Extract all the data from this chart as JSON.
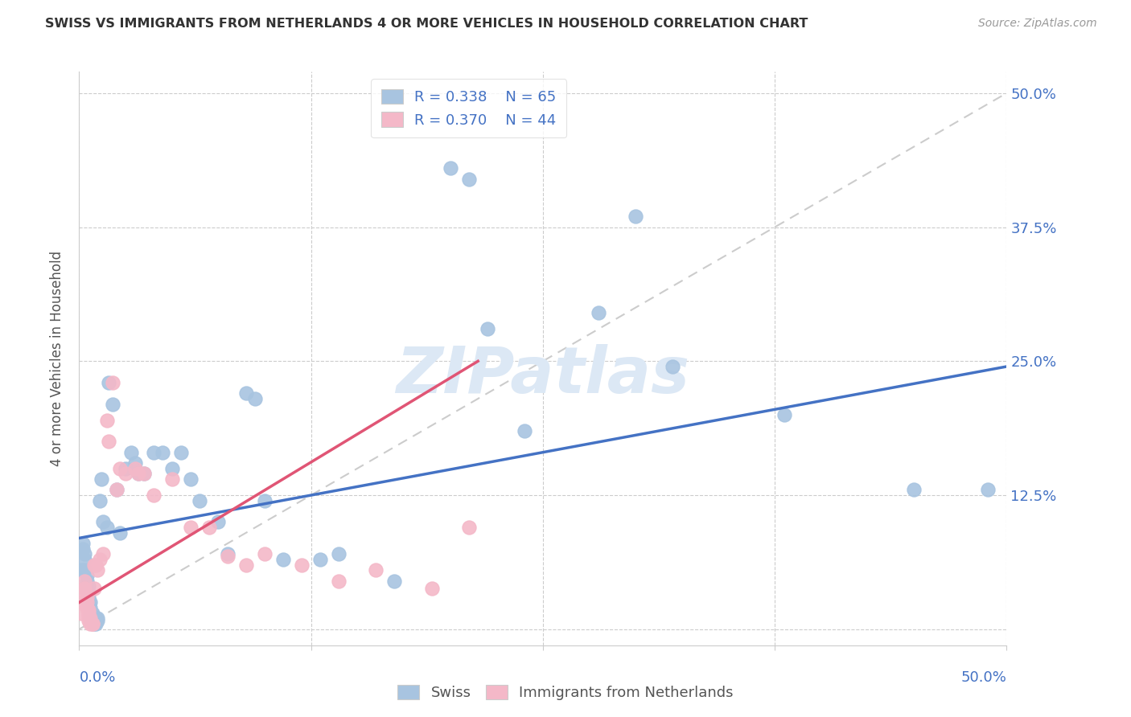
{
  "title": "SWISS VS IMMIGRANTS FROM NETHERLANDS 4 OR MORE VEHICLES IN HOUSEHOLD CORRELATION CHART",
  "source": "Source: ZipAtlas.com",
  "ylabel": "4 or more Vehicles in Household",
  "xlim": [
    0.0,
    0.5
  ],
  "ylim": [
    -0.015,
    0.52
  ],
  "yticks": [
    0.0,
    0.125,
    0.25,
    0.375,
    0.5
  ],
  "ytick_labels": [
    "",
    "12.5%",
    "25.0%",
    "37.5%",
    "50.0%"
  ],
  "xticks": [
    0.0,
    0.125,
    0.25,
    0.375,
    0.5
  ],
  "swiss_R": 0.338,
  "swiss_N": 65,
  "netherlands_R": 0.37,
  "netherlands_N": 44,
  "swiss_color": "#a8c4e0",
  "netherlands_color": "#f4b8c8",
  "swiss_line_color": "#4472c4",
  "netherlands_line_color": "#e05575",
  "tick_label_color": "#4472c4",
  "watermark_color": "#dce8f5",
  "swiss_x": [
    0.001,
    0.002,
    0.002,
    0.003,
    0.003,
    0.003,
    0.004,
    0.004,
    0.004,
    0.005,
    0.005,
    0.005,
    0.005,
    0.006,
    0.006,
    0.006,
    0.006,
    0.007,
    0.007,
    0.007,
    0.008,
    0.008,
    0.008,
    0.009,
    0.009,
    0.01,
    0.01,
    0.011,
    0.012,
    0.013,
    0.015,
    0.016,
    0.018,
    0.02,
    0.022,
    0.025,
    0.028,
    0.03,
    0.032,
    0.035,
    0.04,
    0.045,
    0.05,
    0.055,
    0.06,
    0.065,
    0.075,
    0.08,
    0.09,
    0.095,
    0.1,
    0.11,
    0.13,
    0.14,
    0.17,
    0.2,
    0.21,
    0.22,
    0.24,
    0.28,
    0.3,
    0.32,
    0.38,
    0.45,
    0.49
  ],
  "swiss_y": [
    0.055,
    0.075,
    0.08,
    0.07,
    0.065,
    0.055,
    0.05,
    0.045,
    0.035,
    0.04,
    0.035,
    0.03,
    0.025,
    0.025,
    0.02,
    0.015,
    0.01,
    0.015,
    0.012,
    0.01,
    0.01,
    0.008,
    0.005,
    0.01,
    0.005,
    0.01,
    0.008,
    0.12,
    0.14,
    0.1,
    0.095,
    0.23,
    0.21,
    0.13,
    0.09,
    0.15,
    0.165,
    0.155,
    0.145,
    0.145,
    0.165,
    0.165,
    0.15,
    0.165,
    0.14,
    0.12,
    0.1,
    0.07,
    0.22,
    0.215,
    0.12,
    0.065,
    0.065,
    0.07,
    0.045,
    0.43,
    0.42,
    0.28,
    0.185,
    0.295,
    0.385,
    0.245,
    0.2,
    0.13,
    0.13
  ],
  "netherlands_x": [
    0.001,
    0.002,
    0.002,
    0.003,
    0.003,
    0.004,
    0.004,
    0.004,
    0.005,
    0.005,
    0.005,
    0.005,
    0.006,
    0.006,
    0.006,
    0.007,
    0.007,
    0.008,
    0.008,
    0.009,
    0.01,
    0.011,
    0.013,
    0.015,
    0.016,
    0.018,
    0.02,
    0.022,
    0.025,
    0.03,
    0.032,
    0.035,
    0.04,
    0.05,
    0.06,
    0.07,
    0.08,
    0.09,
    0.1,
    0.12,
    0.14,
    0.16,
    0.19,
    0.21
  ],
  "netherlands_y": [
    0.015,
    0.035,
    0.025,
    0.045,
    0.038,
    0.03,
    0.025,
    0.02,
    0.018,
    0.015,
    0.012,
    0.008,
    0.01,
    0.008,
    0.005,
    0.005,
    0.005,
    0.038,
    0.06,
    0.06,
    0.055,
    0.065,
    0.07,
    0.195,
    0.175,
    0.23,
    0.13,
    0.15,
    0.145,
    0.15,
    0.145,
    0.145,
    0.125,
    0.14,
    0.095,
    0.095,
    0.068,
    0.06,
    0.07,
    0.06,
    0.045,
    0.055,
    0.038,
    0.095
  ],
  "swiss_trend_x": [
    0.0,
    0.5
  ],
  "swiss_trend_y": [
    0.085,
    0.245
  ],
  "neth_trend_x": [
    0.0,
    0.215
  ],
  "neth_trend_y": [
    0.025,
    0.25
  ]
}
